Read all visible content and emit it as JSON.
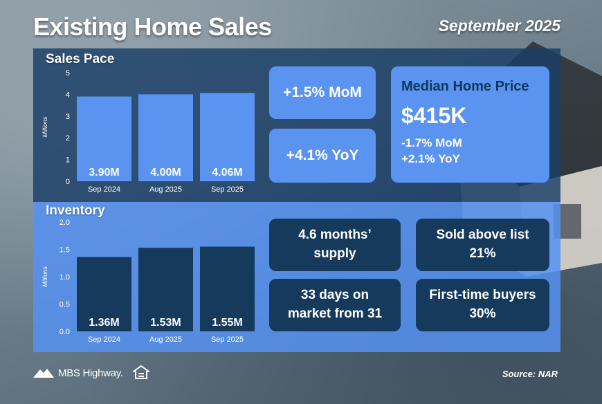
{
  "header": {
    "title": "Existing Home Sales",
    "date": "September 2025"
  },
  "sales_pace": {
    "title": "Sales Pace",
    "mom": "+1.5% MoM",
    "yoy": "+4.1% YoY"
  },
  "median_price": {
    "title": "Median Home Price",
    "price": "$415K",
    "mom": "-1.7% MoM",
    "yoy": "+2.1% YoY"
  },
  "inventory": {
    "title": "Inventory",
    "supply_line1": "4.6 months’",
    "supply_line2": "supply",
    "above_list_line1": "Sold above list",
    "above_list_line2": "21%",
    "days_line1": "33 days on",
    "days_line2": "market from 31",
    "first_time_line1": "First-time buyers",
    "first_time_line2": "30%"
  },
  "footer": {
    "brand": "MBS Highway.",
    "source": "Source: NAR"
  },
  "colors": {
    "panel_top": "#1a3e66",
    "panel_bottom": "#5692f2",
    "bar_light": "#5a93f0",
    "bar_dark": "#153a5c",
    "median_title": "#10365c"
  },
  "chart_data": [
    {
      "type": "bar",
      "title": "Sales Pace",
      "categories": [
        "Sep 2024",
        "Aug 2025",
        "Sep 2025"
      ],
      "values": [
        3.9,
        4.0,
        4.06
      ],
      "labels": [
        "3.90M",
        "4.00M",
        "4.06M"
      ],
      "ylabel": "Millions",
      "ylim": [
        0,
        5
      ],
      "yticks": [
        "0",
        "1",
        "2",
        "3",
        "4",
        "5"
      ],
      "grid": false
    },
    {
      "type": "bar",
      "title": "Inventory",
      "categories": [
        "Sep 2024",
        "Aug 2025",
        "Sep 2025"
      ],
      "values": [
        1.36,
        1.53,
        1.55
      ],
      "labels": [
        "1.36M",
        "1.53M",
        "1.55M"
      ],
      "ylabel": "Millions",
      "ylim": [
        0,
        2
      ],
      "yticks": [
        "0.0",
        "0.5",
        "1.0",
        "1.5",
        "2.0"
      ],
      "grid": false
    }
  ]
}
